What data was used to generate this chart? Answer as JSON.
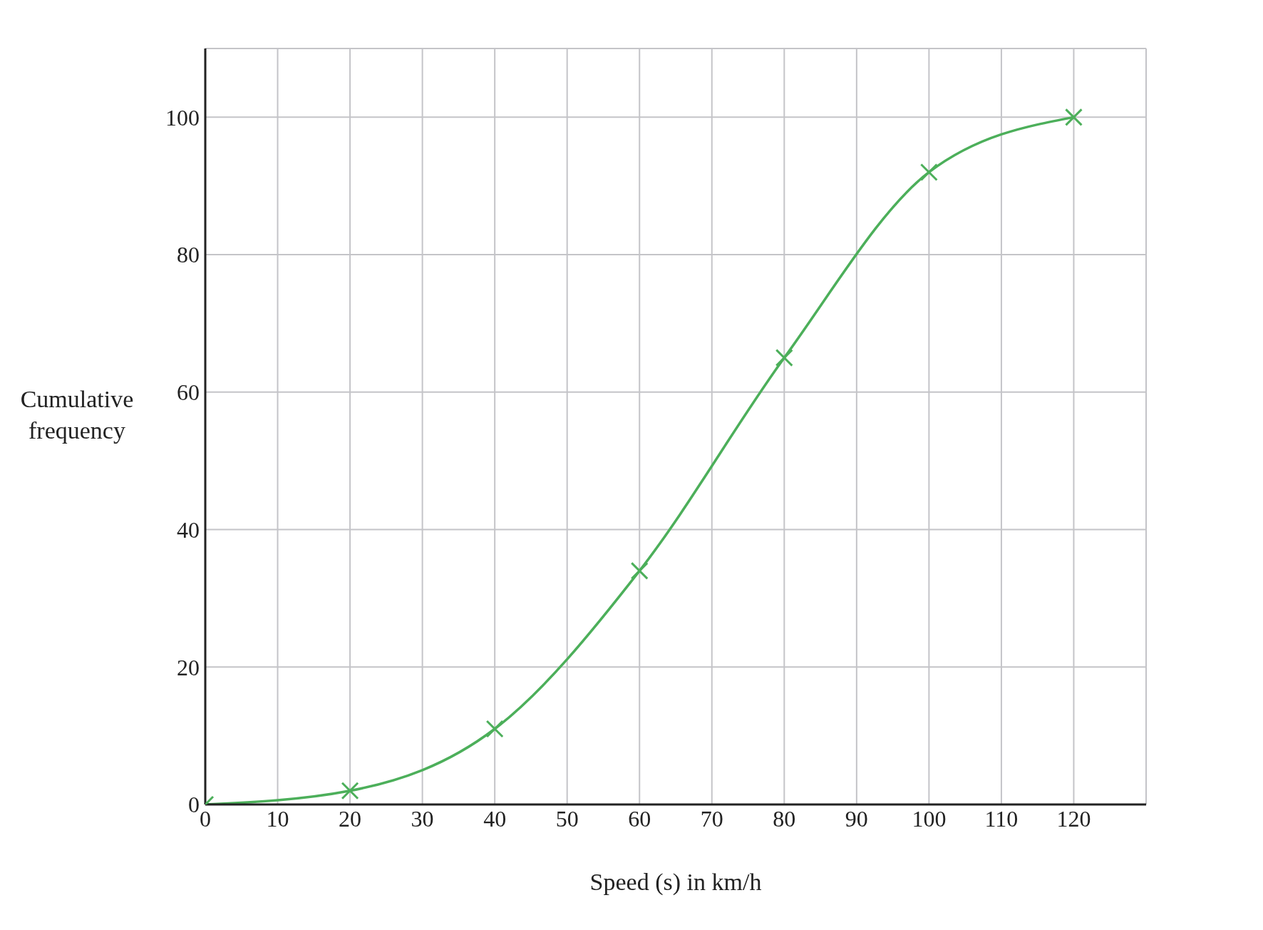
{
  "chart_data": {
    "type": "line",
    "xlabel": "Speed (s) in km/h",
    "ylabel": "Cumulative frequency",
    "x": [
      0,
      20,
      40,
      60,
      80,
      100,
      120
    ],
    "series": [
      {
        "color": "#4caf5a",
        "values": [
          0,
          2,
          11,
          34,
          65,
          92,
          100
        ]
      }
    ],
    "xlim": [
      0,
      130
    ],
    "xticks": [
      0,
      10,
      20,
      30,
      40,
      50,
      60,
      70,
      80,
      90,
      100,
      110,
      120
    ],
    "ylim": [
      0,
      110
    ],
    "yticks": [
      0,
      20,
      40,
      60,
      80,
      100
    ],
    "grid": true,
    "marker": "cross",
    "line_style": "solid",
    "legend": false
  }
}
